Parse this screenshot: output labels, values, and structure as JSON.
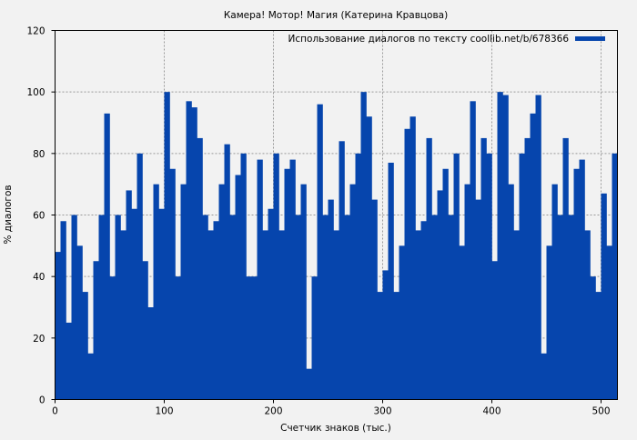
{
  "chart_data": {
    "type": "bar",
    "title": "Камера! Мотор! Магия (Катерина Кравцова)",
    "xlabel": "Счетчик знаков (тыс.)",
    "ylabel": "% диалогов",
    "xlim": [
      0,
      515
    ],
    "ylim": [
      0,
      120
    ],
    "xticks": [
      "0",
      "100",
      "200",
      "300",
      "400",
      "500"
    ],
    "yticks": [
      "0",
      "20",
      "40",
      "60",
      "80",
      "100",
      "120"
    ],
    "grid": true,
    "legend": {
      "position": "top-right",
      "label": "Использование диалогов по тексту coollib.net/b/678366"
    },
    "series_color": "#0645ad",
    "x_start": 0,
    "x_step": 5,
    "values": [
      48,
      58,
      25,
      60,
      50,
      35,
      15,
      45,
      60,
      93,
      40,
      60,
      55,
      68,
      62,
      80,
      45,
      30,
      70,
      62,
      100,
      75,
      40,
      70,
      97,
      95,
      85,
      60,
      55,
      58,
      70,
      83,
      60,
      73,
      80,
      40,
      40,
      78,
      55,
      62,
      80,
      55,
      75,
      78,
      60,
      70,
      10,
      40,
      96,
      60,
      65,
      55,
      84,
      60,
      70,
      80,
      100,
      92,
      65,
      35,
      42,
      77,
      35,
      50,
      88,
      92,
      55,
      58,
      85,
      60,
      68,
      75,
      60,
      80,
      50,
      70,
      97,
      65,
      85,
      80,
      45,
      100,
      99,
      70,
      55,
      80,
      85,
      93,
      99,
      15,
      50,
      70,
      60,
      85,
      60,
      75,
      78,
      55,
      40,
      35,
      67,
      50,
      80
    ]
  }
}
